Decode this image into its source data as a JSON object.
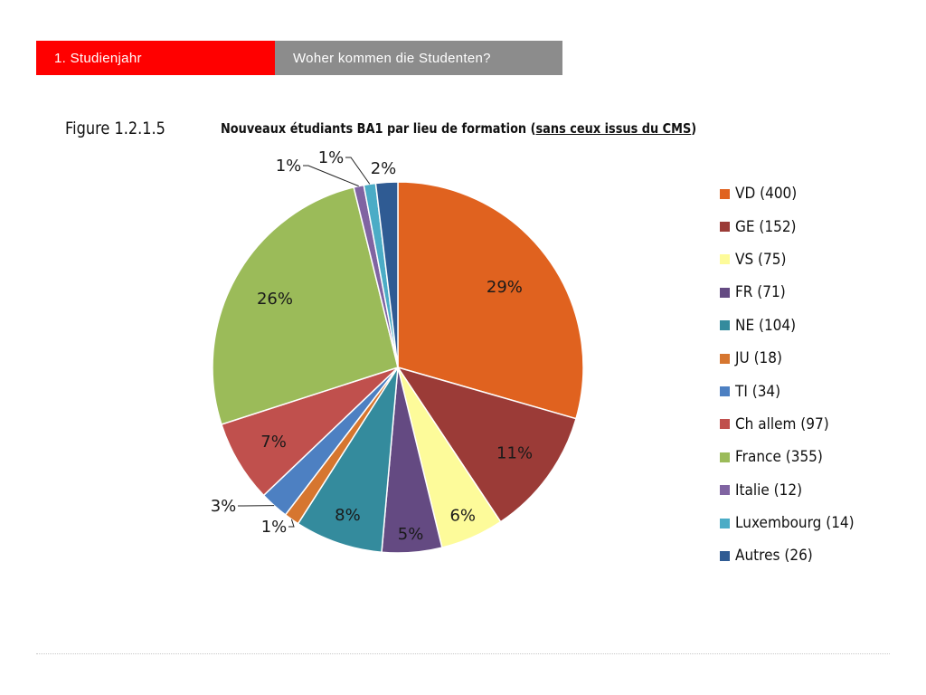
{
  "header": {
    "section_label": "1. Studienjahr",
    "topic_label": "Woher kommen die Studenten?"
  },
  "figure": {
    "label": "Figure 1.2.1.5",
    "title_main": "Nouveaux étudiants BA1 par lieu de formation (",
    "title_underlined": "sans ceux issus du CMS",
    "title_end": ")"
  },
  "chart_data": {
    "type": "pie",
    "title": "Nouveaux étudiants BA1 par lieu de formation (sans ceux issus du CMS)",
    "start_angle_deg": 0,
    "direction": "clockwise",
    "legend_position": "right",
    "slices": [
      {
        "name": "VD",
        "legend": "VD (400)",
        "value": 400,
        "percent_label": "29%",
        "color": "#e0621f"
      },
      {
        "name": "GE",
        "legend": "GE (152)",
        "value": 152,
        "percent_label": "11%",
        "color": "#9b3b37"
      },
      {
        "name": "VS",
        "legend": "VS (75)",
        "value": 75,
        "percent_label": "6%",
        "color": "#fdfb9a"
      },
      {
        "name": "FR",
        "legend": "FR (71)",
        "value": 71,
        "percent_label": "5%",
        "color": "#644a82"
      },
      {
        "name": "NE",
        "legend": "NE (104)",
        "value": 104,
        "percent_label": "8%",
        "color": "#348b9d"
      },
      {
        "name": "JU",
        "legend": "JU (18)",
        "value": 18,
        "percent_label": "1%",
        "color": "#d6762f"
      },
      {
        "name": "TI",
        "legend": "TI (34)",
        "value": 34,
        "percent_label": "3%",
        "color": "#4d80c2"
      },
      {
        "name": "Ch allem",
        "legend": "Ch allem (97)",
        "value": 97,
        "percent_label": "7%",
        "color": "#c0504d"
      },
      {
        "name": "France",
        "legend": "France (355)",
        "value": 355,
        "percent_label": "26%",
        "color": "#9bbb59"
      },
      {
        "name": "Italie",
        "legend": "Italie (12)",
        "value": 12,
        "percent_label": "1%",
        "color": "#8064a2"
      },
      {
        "name": "Luxembourg",
        "legend": "Luxembourg (14)",
        "value": 14,
        "percent_label": "1%",
        "color": "#4bacc6"
      },
      {
        "name": "Autres",
        "legend": "Autres (26)",
        "value": 26,
        "percent_label": "2%",
        "color": "#2f5b93"
      }
    ]
  }
}
